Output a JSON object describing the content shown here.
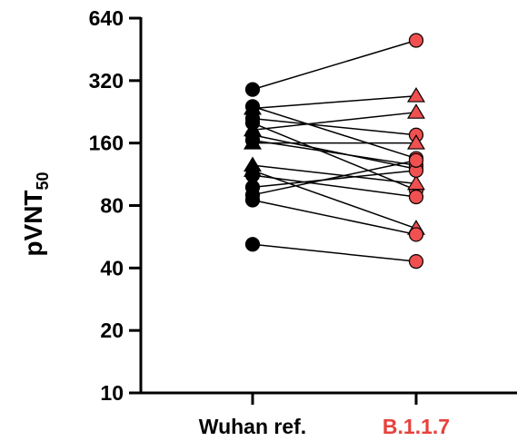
{
  "chart_data": {
    "type": "scatter",
    "y_scale": "log2",
    "ylim": [
      10,
      640
    ],
    "ylabel": "pVNT",
    "ylabel_subscript": "50",
    "xlabel": "",
    "y_ticks": [
      10,
      20,
      40,
      80,
      160,
      320,
      640
    ],
    "y_tick_labels": [
      "10",
      "20",
      "40",
      "80",
      "160",
      "320",
      "640"
    ],
    "categories": [
      "Wuhan ref.",
      "B.1.1.7"
    ],
    "category_colors": [
      "#000000",
      "#e8413c"
    ],
    "marker_colors": {
      "Wuhan ref.": "#000000",
      "B.1.1.7": "#f05050"
    },
    "grid": false,
    "legend": "none",
    "pairs": [
      {
        "marker": "circle",
        "values": [
          290,
          500
        ]
      },
      {
        "marker": "circle",
        "values": [
          240,
          135
        ]
      },
      {
        "marker": "triangle",
        "values": [
          235,
          270
        ]
      },
      {
        "marker": "circle",
        "values": [
          210,
          175
        ]
      },
      {
        "marker": "circle",
        "values": [
          200,
          95
        ]
      },
      {
        "marker": "triangle",
        "values": [
          185,
          225
        ]
      },
      {
        "marker": "circle",
        "values": [
          175,
          120
        ]
      },
      {
        "marker": "circle",
        "values": [
          165,
          125
        ]
      },
      {
        "marker": "triangle",
        "values": [
          160,
          160
        ]
      },
      {
        "marker": "triangle",
        "values": [
          125,
          102
        ]
      },
      {
        "marker": "triangle",
        "values": [
          118,
          62
        ]
      },
      {
        "marker": "circle",
        "values": [
          112,
          88
        ]
      },
      {
        "marker": "circle",
        "values": [
          98,
          118
        ]
      },
      {
        "marker": "circle",
        "values": [
          90,
          132
        ]
      },
      {
        "marker": "circle",
        "values": [
          85,
          58
        ]
      },
      {
        "marker": "circle",
        "values": [
          52,
          43
        ]
      }
    ]
  }
}
